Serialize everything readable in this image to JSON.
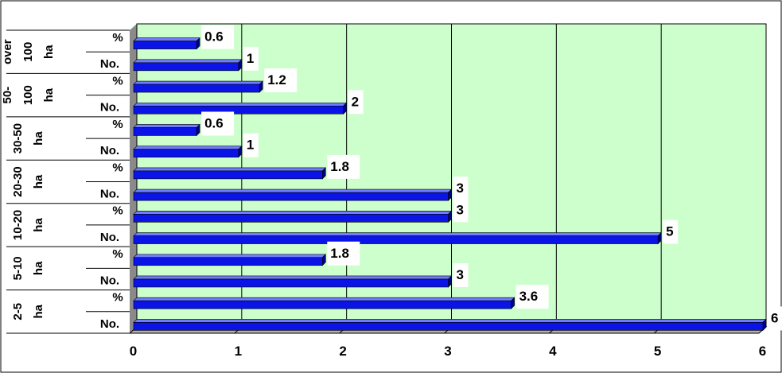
{
  "chart_data": {
    "type": "bar",
    "orientation": "horizontal",
    "title": "",
    "xlabel": "",
    "ylabel": "",
    "xlim": [
      0,
      6
    ],
    "x_ticks": [
      "0",
      "1",
      "2",
      "3",
      "4",
      "5",
      "6"
    ],
    "grid": true,
    "legend": "none",
    "groups": [
      {
        "label_lines": [
          "over",
          "100",
          "ha"
        ],
        "bars": [
          {
            "label": "%",
            "value": 0.6,
            "value_label": "0.6"
          },
          {
            "label": "No.",
            "value": 1,
            "value_label": "1"
          }
        ]
      },
      {
        "label_lines": [
          "50-",
          "100",
          "ha"
        ],
        "bars": [
          {
            "label": "%",
            "value": 1.2,
            "value_label": "1.2"
          },
          {
            "label": "No.",
            "value": 2,
            "value_label": "2"
          }
        ]
      },
      {
        "label_lines": [
          "30-50",
          "ha"
        ],
        "bars": [
          {
            "label": "%",
            "value": 0.6,
            "value_label": "0.6"
          },
          {
            "label": "No.",
            "value": 1,
            "value_label": "1"
          }
        ]
      },
      {
        "label_lines": [
          "20-30",
          "ha"
        ],
        "bars": [
          {
            "label": "%",
            "value": 1.8,
            "value_label": "1.8"
          },
          {
            "label": "No.",
            "value": 3,
            "value_label": "3"
          }
        ]
      },
      {
        "label_lines": [
          "10-20",
          "ha"
        ],
        "bars": [
          {
            "label": "%",
            "value": 3,
            "value_label": "3"
          },
          {
            "label": "No.",
            "value": 5,
            "value_label": "5"
          }
        ]
      },
      {
        "label_lines": [
          "5-10",
          "ha"
        ],
        "bars": [
          {
            "label": "%",
            "value": 1.8,
            "value_label": "1.8"
          },
          {
            "label": "No.",
            "value": 3,
            "value_label": "3"
          }
        ]
      },
      {
        "label_lines": [
          "2-5",
          "ha"
        ],
        "bars": [
          {
            "label": "%",
            "value": 3.6,
            "value_label": "3.6"
          },
          {
            "label": "No.",
            "value": 6,
            "value_label": "6"
          }
        ]
      }
    ],
    "colors": {
      "bar_fill": "#0a14e6",
      "bar_top": "#6f7cff",
      "bar_side": "#00008a",
      "plot_bg": "#ccffcc",
      "floor": "#8a8a8a",
      "grid": "#000000"
    }
  }
}
